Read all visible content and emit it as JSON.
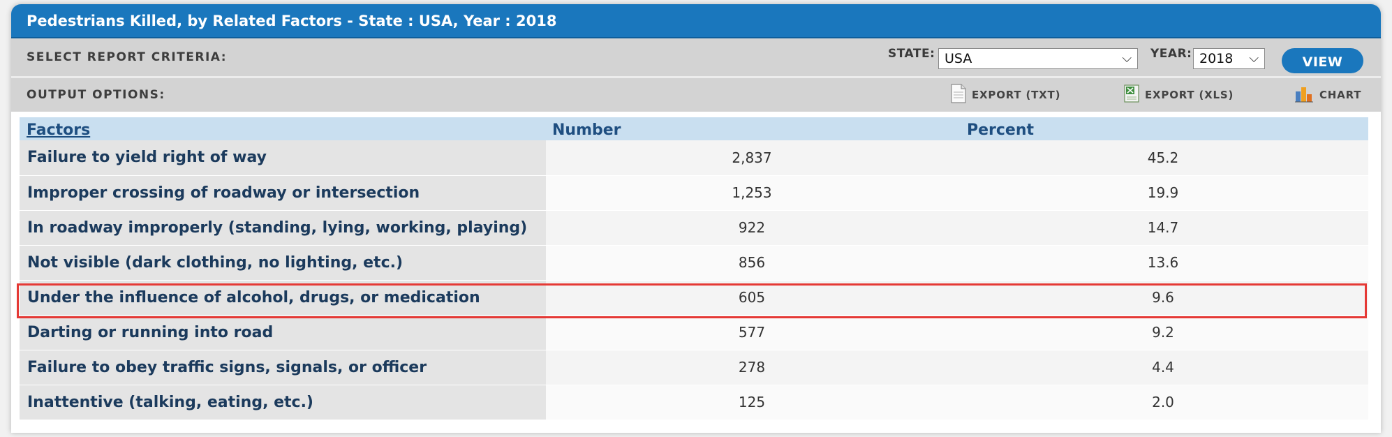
{
  "title": "Pedestrians Killed, by Related Factors - State : USA, Year : 2018",
  "criteria": {
    "label": "SELECT REPORT CRITERIA:",
    "state_label": "STATE:",
    "state_value": "USA",
    "year_label": "YEAR:",
    "year_value": "2018",
    "view_label": "VIEW"
  },
  "output": {
    "label": "OUTPUT OPTIONS:",
    "export_txt": "EXPORT (TXT)",
    "export_xls": "EXPORT (XLS)",
    "chart": "CHART"
  },
  "table": {
    "headers": [
      "Factors",
      "Number",
      "Percent"
    ],
    "rows": [
      {
        "factor": "Failure to yield right of way",
        "number": "2,837",
        "percent": "45.2"
      },
      {
        "factor": "Improper crossing of roadway or intersection",
        "number": "1,253",
        "percent": "19.9"
      },
      {
        "factor": "In roadway improperly (standing, lying, working, playing)",
        "number": "922",
        "percent": "14.7"
      },
      {
        "factor": "Not visible (dark clothing, no lighting, etc.)",
        "number": "856",
        "percent": "13.6"
      },
      {
        "factor": "Under the influence of alcohol, drugs, or medication",
        "number": "605",
        "percent": "9.6"
      },
      {
        "factor": "Darting or running into road",
        "number": "577",
        "percent": "9.2"
      },
      {
        "factor": "Failure to obey traffic signs, signals, or officer",
        "number": "278",
        "percent": "4.4"
      },
      {
        "factor": "Inattentive (talking, eating, etc.)",
        "number": "125",
        "percent": "2.0"
      }
    ]
  },
  "colors": {
    "title_bar": "#1a77bd",
    "highlight": "#e53935",
    "header_bg": "#c9dff0"
  }
}
